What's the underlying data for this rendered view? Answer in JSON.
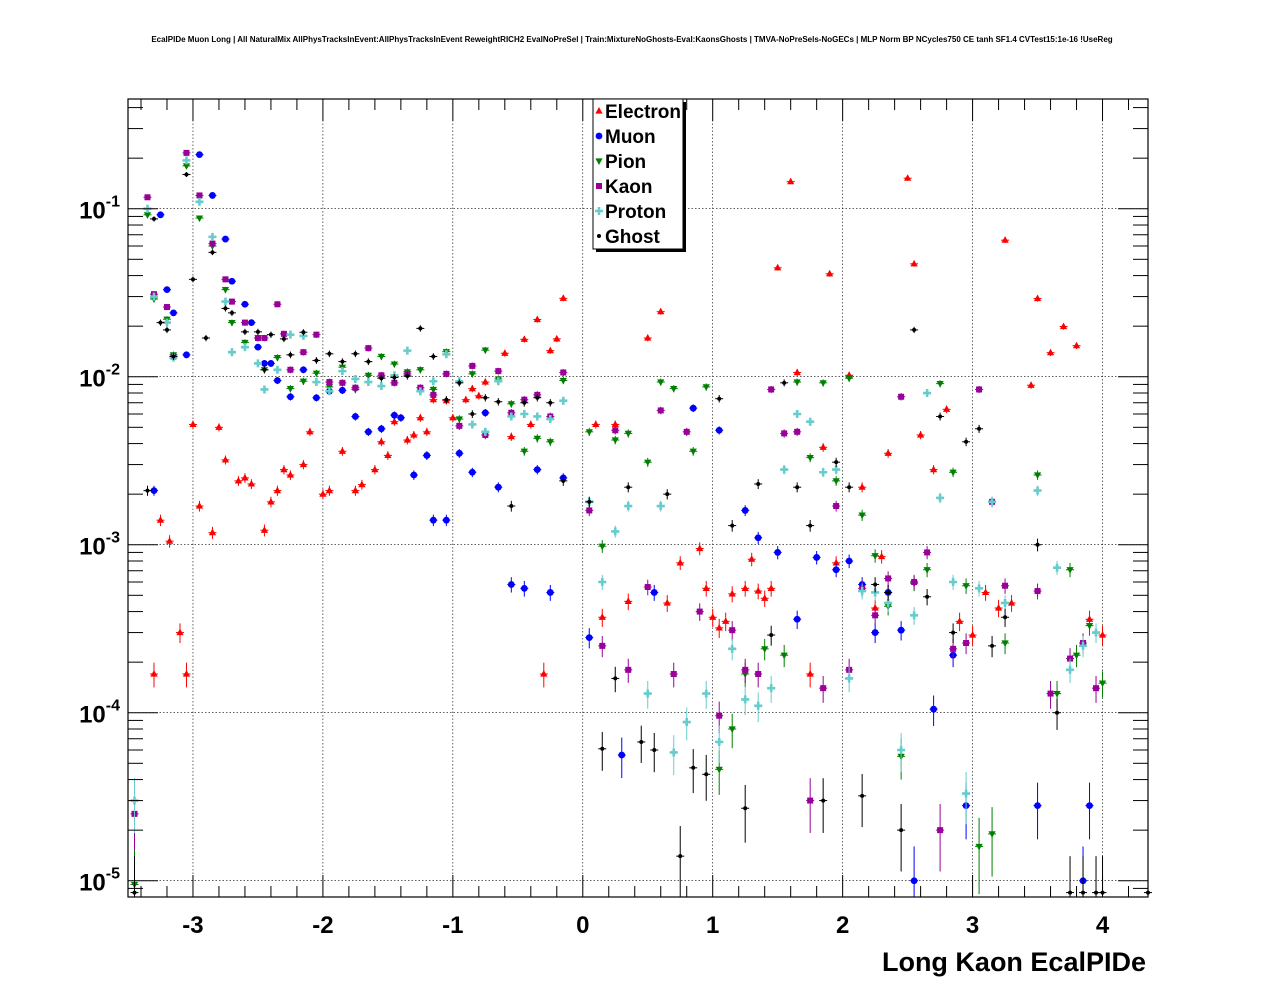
{
  "chart_data": {
    "type": "scatter",
    "title": "EcalPIDe Muon Long | All NaturalMix AllPhysTracksInEvent:AllPhysTracksInEvent ReweightRICH2 EvalNoPreSel | Train:MixtureNoGhosts-Eval:KaonsGhosts | TMVA-NoPreSels-NoGECs | MLP Norm BP NCycles750 CE tanh SF1.4 CVTest15:1e-16 !UseReg",
    "xlabel": "Long Kaon EcalPIDe",
    "ylabel": "",
    "xlim": [
      -3.5,
      4.35
    ],
    "ylim": [
      8e-06,
      0.45
    ],
    "yscale": "log",
    "grid": true,
    "legend_position": "top-center",
    "x_ticks": [
      -3,
      -2,
      -1,
      0,
      1,
      2,
      3,
      4
    ],
    "x_tick_labels": [
      "-3",
      "-2",
      "-1",
      "0",
      "1",
      "2",
      "3",
      "4"
    ],
    "y_ticks": [
      1e-05,
      0.0001,
      0.001,
      0.01,
      0.1
    ],
    "y_tick_labels": [
      {
        "base": "10",
        "exp": "-5"
      },
      {
        "base": "10",
        "exp": "-4"
      },
      {
        "base": "10",
        "exp": "-3"
      },
      {
        "base": "10",
        "exp": "-2"
      },
      {
        "base": "10",
        "exp": "-1"
      }
    ],
    "series": [
      {
        "name": "Electron",
        "color": "#ff0000",
        "marker": "triangle-up",
        "x": [
          -3.3,
          -3.25,
          -3.18,
          -3.1,
          -3.05,
          -3,
          -2.95,
          -2.85,
          -2.8,
          -2.75,
          -2.65,
          -2.6,
          -2.55,
          -2.45,
          -2.4,
          -2.35,
          -2.3,
          -2.25,
          -2.15,
          -2.1,
          -2,
          -1.95,
          -1.85,
          -1.75,
          -1.7,
          -1.6,
          -1.55,
          -1.5,
          -1.45,
          -1.35,
          -1.3,
          -1.25,
          -1.2,
          -1.15,
          -1.05,
          -1,
          -0.9,
          -0.85,
          -0.8,
          -0.75,
          -0.6,
          -0.55,
          -0.45,
          -0.4,
          -0.35,
          -0.3,
          -0.25,
          -0.2,
          -0.15,
          0.1,
          0.15,
          0.25,
          0.35,
          0.5,
          0.6,
          0.65,
          0.75,
          0.9,
          0.95,
          1,
          1.05,
          1.1,
          1.15,
          1.25,
          1.3,
          1.35,
          1.4,
          1.45,
          1.5,
          1.6,
          1.65,
          1.75,
          1.85,
          1.9,
          1.95,
          2.05,
          2.15,
          2.25,
          2.3,
          2.35,
          2.5,
          2.55,
          2.6,
          2.7,
          2.8,
          2.9,
          3,
          3.1,
          3.2,
          3.25,
          3.3,
          3.45,
          3.5,
          3.6,
          3.7,
          3.8,
          3.9,
          4
        ],
        "y": [
          0.00017,
          0.0014,
          0.00105,
          0.0003,
          0.00017,
          0.0052,
          0.0017,
          0.00118,
          0.005,
          0.0032,
          0.0024,
          0.0025,
          0.0023,
          0.00122,
          0.0018,
          0.0021,
          0.0028,
          0.0026,
          0.003,
          0.0047,
          0.002,
          0.0021,
          0.0036,
          0.0021,
          0.00228,
          0.0028,
          0.0041,
          0.0034,
          0.0054,
          0.0042,
          0.0045,
          0.0057,
          0.0047,
          0.0073,
          0.0072,
          0.0057,
          0.0073,
          0.0085,
          0.0077,
          0.0093,
          0.0138,
          0.0044,
          0.0167,
          0.0052,
          0.0219,
          0.00017,
          0.0143,
          0.0168,
          0.0293,
          0.0052,
          0.00037,
          0.0052,
          0.00046,
          0.017,
          0.0244,
          0.00045,
          0.00078,
          0.00095,
          0.00055,
          0.00037,
          0.00032,
          0.00035,
          0.00051,
          0.00055,
          0.00082,
          0.00053,
          0.00048,
          0.00055,
          0.0445,
          0.145,
          0.0106,
          0.00017,
          0.0038,
          0.041,
          0.00078,
          0.0102,
          0.0022,
          0.00042,
          0.00085,
          0.0035,
          0.152,
          0.047,
          0.0045,
          0.0028,
          0.0064,
          0.00035,
          0.00029,
          0.00052,
          0.00042,
          0.065,
          0.00045,
          0.0089,
          0.0292,
          0.0139,
          0.0199,
          0.0153,
          0.00036,
          0.00029
        ]
      },
      {
        "name": "Muon",
        "color": "#0000ff",
        "marker": "circle",
        "x": [
          -3.3,
          -3.25,
          -3.2,
          -3.15,
          -3.05,
          -2.95,
          -2.85,
          -2.75,
          -2.7,
          -2.6,
          -2.55,
          -2.5,
          -2.45,
          -2.4,
          -2.35,
          -2.25,
          -2.15,
          -2.05,
          -1.95,
          -1.85,
          -1.75,
          -1.65,
          -1.55,
          -1.45,
          -1.4,
          -1.3,
          -1.2,
          -1.15,
          -1.05,
          -0.95,
          -0.85,
          -0.75,
          -0.65,
          -0.55,
          -0.45,
          -0.35,
          -0.25,
          -0.15,
          0.05,
          0.3,
          0.55,
          0.85,
          1.05,
          1.25,
          1.35,
          1.5,
          1.65,
          1.8,
          1.95,
          2.05,
          2.15,
          2.25,
          2.35,
          2.45,
          2.55,
          2.7,
          2.85,
          2.95,
          3.5,
          3.85,
          3.9
        ],
        "y": [
          0.0021,
          0.092,
          0.033,
          0.024,
          0.0135,
          0.21,
          0.12,
          0.066,
          0.037,
          0.027,
          0.021,
          0.015,
          0.012,
          0.012,
          0.0095,
          0.0076,
          0.011,
          0.0075,
          0.0082,
          0.0083,
          0.0058,
          0.0047,
          0.0049,
          0.0059,
          0.0057,
          0.0026,
          0.0034,
          0.0014,
          0.0014,
          0.0035,
          0.0027,
          0.0061,
          0.0022,
          0.00058,
          0.00055,
          0.0028,
          0.00052,
          0.0025,
          0.00028,
          5.6e-05,
          0.00052,
          0.0065,
          0.0048,
          0.0016,
          0.0011,
          0.0009,
          0.00036,
          0.00084,
          0.00071,
          0.0008,
          0.00058,
          0.0003,
          0.00052,
          0.00031,
          1e-05,
          0.000105,
          0.00022,
          2.8e-05,
          2.8e-05,
          1e-05,
          2.8e-05
        ]
      },
      {
        "name": "Pion",
        "color": "#008000",
        "marker": "triangle-down",
        "x": [
          -3.45,
          -3.35,
          -3.3,
          -3.2,
          -3.15,
          -3.05,
          -2.95,
          -2.85,
          -2.75,
          -2.7,
          -2.6,
          -2.5,
          -2.45,
          -2.35,
          -2.25,
          -2.15,
          -2.05,
          -1.95,
          -1.85,
          -1.75,
          -1.65,
          -1.55,
          -1.45,
          -1.35,
          -1.25,
          -1.15,
          -1.05,
          -0.95,
          -0.85,
          -0.75,
          -0.65,
          -0.55,
          -0.45,
          -0.35,
          -0.25,
          -0.15,
          0.05,
          0.15,
          0.25,
          0.35,
          0.5,
          0.6,
          0.7,
          0.85,
          0.95,
          1.05,
          1.15,
          1.25,
          1.4,
          1.55,
          1.65,
          1.75,
          1.85,
          1.95,
          2.05,
          2.15,
          2.25,
          2.35,
          2.45,
          2.55,
          2.65,
          2.75,
          2.85,
          2.95,
          3.05,
          3.15,
          3.25,
          3.5,
          3.65,
          3.75,
          3.8,
          3.9,
          4
        ],
        "y": [
          9.5e-06,
          0.092,
          0.029,
          0.022,
          0.0135,
          0.18,
          0.088,
          0.06,
          0.033,
          0.021,
          0.016,
          0.017,
          0.011,
          0.013,
          0.0085,
          0.0094,
          0.0105,
          0.0087,
          0.0114,
          0.0084,
          0.0102,
          0.0132,
          0.0119,
          0.0107,
          0.011,
          0.0084,
          0.0141,
          0.0056,
          0.0104,
          0.0144,
          0.0097,
          0.0069,
          0.0036,
          0.0043,
          0.0041,
          0.0095,
          0.0047,
          0.00098,
          0.0042,
          0.0046,
          0.0031,
          0.0093,
          0.0085,
          0.0036,
          0.0087,
          4.6e-05,
          8e-05,
          0.00017,
          0.00024,
          0.00022,
          0.0093,
          0.0033,
          0.0092,
          0.0024,
          0.0098,
          0.0015,
          0.00086,
          0.00043,
          5.5e-05,
          0.00059,
          0.00071,
          0.0091,
          0.0027,
          0.00057,
          1.6e-05,
          1.9e-05,
          0.00026,
          0.0026,
          0.00013,
          0.00071,
          0.00022,
          0.00033,
          0.00015
        ]
      },
      {
        "name": "Kaon",
        "color": "#990099",
        "marker": "square",
        "x": [
          -3.45,
          -3.35,
          -3.3,
          -3.2,
          -3.15,
          -3.05,
          -2.95,
          -2.85,
          -2.75,
          -2.7,
          -2.6,
          -2.5,
          -2.45,
          -2.35,
          -2.3,
          -2.25,
          -2.15,
          -2.05,
          -1.95,
          -1.85,
          -1.75,
          -1.65,
          -1.55,
          -1.45,
          -1.35,
          -1.25,
          -1.15,
          -1.05,
          -0.95,
          -0.85,
          -0.75,
          -0.65,
          -0.55,
          -0.45,
          -0.35,
          -0.25,
          -0.15,
          0.05,
          0.15,
          0.25,
          0.35,
          0.5,
          0.6,
          0.7,
          0.8,
          0.9,
          1.05,
          1.15,
          1.25,
          1.35,
          1.45,
          1.55,
          1.65,
          1.75,
          1.85,
          1.95,
          2.05,
          2.15,
          2.25,
          2.35,
          2.45,
          2.55,
          2.65,
          2.75,
          2.85,
          2.95,
          3.05,
          3.15,
          3.25,
          3.5,
          3.6,
          3.75,
          3.85,
          3.95
        ],
        "y": [
          2.5e-05,
          0.117,
          0.031,
          0.026,
          0.0132,
          0.215,
          0.12,
          0.062,
          0.038,
          0.028,
          0.021,
          0.017,
          0.017,
          0.027,
          0.018,
          0.011,
          0.014,
          0.0178,
          0.0093,
          0.0092,
          0.0086,
          0.0148,
          0.0102,
          0.0092,
          0.0104,
          0.0086,
          0.0078,
          0.0104,
          0.0051,
          0.0116,
          0.0045,
          0.0108,
          0.0061,
          0.0073,
          0.0078,
          0.0058,
          0.0106,
          0.0016,
          0.00025,
          0.0048,
          0.00018,
          0.00056,
          0.0063,
          0.00017,
          0.0047,
          0.0004,
          9.6e-05,
          0.00031,
          0.00018,
          0.00017,
          0.0084,
          0.0046,
          0.0047,
          3e-05,
          0.00014,
          0.0017,
          0.00018,
          0.00055,
          0.00038,
          0.00063,
          0.0076,
          0.0006,
          0.0009,
          2e-05,
          0.00024,
          0.00026,
          0.0084,
          0.0018,
          0.00057,
          0.00053,
          0.00013,
          0.00021,
          0.00026,
          0.00014
        ]
      },
      {
        "name": "Proton",
        "color": "#66cccc",
        "marker": "cross",
        "x": [
          -3.45,
          -3.35,
          -3.3,
          -3.2,
          -3.15,
          -3.05,
          -2.95,
          -2.85,
          -2.75,
          -2.7,
          -2.6,
          -2.5,
          -2.45,
          -2.35,
          -2.25,
          -2.15,
          -2.05,
          -1.95,
          -1.85,
          -1.75,
          -1.65,
          -1.55,
          -1.45,
          -1.35,
          -1.25,
          -1.15,
          -1.05,
          -0.95,
          -0.85,
          -0.75,
          -0.65,
          -0.55,
          -0.45,
          -0.35,
          -0.25,
          -0.15,
          0.05,
          0.15,
          0.25,
          0.35,
          0.5,
          0.6,
          0.7,
          0.8,
          0.95,
          1.05,
          1.15,
          1.25,
          1.35,
          1.45,
          1.55,
          1.65,
          1.75,
          1.85,
          1.95,
          2.05,
          2.15,
          2.25,
          2.35,
          2.45,
          2.55,
          2.65,
          2.75,
          2.85,
          2.95,
          3.05,
          3.15,
          3.25,
          3.5,
          3.65,
          3.75,
          3.85,
          3.95
        ],
        "y": [
          3e-05,
          0.1,
          0.03,
          0.021,
          0.013,
          0.194,
          0.11,
          0.068,
          0.028,
          0.014,
          0.015,
          0.012,
          0.0084,
          0.011,
          0.0178,
          0.0175,
          0.0093,
          0.0082,
          0.0108,
          0.0097,
          0.0093,
          0.0088,
          0.0102,
          0.0143,
          0.0082,
          0.0094,
          0.0136,
          0.0094,
          0.0052,
          0.0047,
          0.0094,
          0.0058,
          0.006,
          0.0058,
          0.0056,
          0.0072,
          0.0018,
          0.0006,
          0.0012,
          0.0017,
          0.00013,
          0.0017,
          5.8e-05,
          8.8e-05,
          0.00013,
          6.7e-05,
          0.00024,
          0.00012,
          0.00011,
          0.00014,
          0.0028,
          0.006,
          0.0054,
          0.0027,
          0.0028,
          0.00016,
          0.00053,
          0.00052,
          0.00045,
          6e-05,
          0.00038,
          0.008,
          0.0019,
          0.0006,
          3.3e-05,
          0.00055,
          0.0018,
          0.00045,
          0.0021,
          0.00073,
          0.00018,
          0.00025,
          0.0003
        ]
      },
      {
        "name": "Ghost",
        "color": "#000000",
        "marker": "dot",
        "x": [
          -3.45,
          -3.35,
          -3.3,
          -3.25,
          -3.2,
          -3.15,
          -3.05,
          -3,
          -2.9,
          -2.85,
          -2.75,
          -2.7,
          -2.6,
          -2.5,
          -2.45,
          -2.4,
          -2.3,
          -2.25,
          -2.15,
          -2.05,
          -1.95,
          -1.85,
          -1.75,
          -1.65,
          -1.55,
          -1.45,
          -1.35,
          -1.25,
          -1.15,
          -1.05,
          -0.95,
          -0.85,
          -0.75,
          -0.65,
          -0.55,
          -0.45,
          -0.35,
          -0.25,
          -0.15,
          0.05,
          0.15,
          0.25,
          0.35,
          0.45,
          0.55,
          0.65,
          0.75,
          0.85,
          0.95,
          1.05,
          1.15,
          1.25,
          1.35,
          1.45,
          1.55,
          1.65,
          1.75,
          1.85,
          1.95,
          2.05,
          2.15,
          2.25,
          2.35,
          2.45,
          2.55,
          2.65,
          2.75,
          2.85,
          2.95,
          3.05,
          3.15,
          3.25,
          3.5,
          3.65,
          3.75,
          3.85,
          3.95,
          4,
          4.35
        ],
        "y": [
          8.5e-06,
          0.0021,
          0.087,
          0.021,
          0.019,
          0.0132,
          0.16,
          0.038,
          0.017,
          0.055,
          0.0255,
          0.024,
          0.0185,
          0.0185,
          0.011,
          0.0178,
          0.0168,
          0.0135,
          0.0184,
          0.0125,
          0.0137,
          0.0123,
          0.0137,
          0.0123,
          0.0098,
          0.0099,
          0.0101,
          0.0194,
          0.0132,
          0.0073,
          0.0092,
          0.006,
          0.0075,
          0.0071,
          0.0017,
          0.007,
          0.0075,
          0.007,
          0.0024,
          0.0018,
          6.1e-05,
          0.00016,
          0.0022,
          6.7e-05,
          6e-05,
          0.002,
          1.4e-05,
          4.7e-05,
          4.3e-05,
          0.0074,
          0.0013,
          2.7e-05,
          0.0023,
          0.00029,
          0.0092,
          0.0022,
          0.0013,
          3e-05,
          0.0031,
          0.0022,
          3.2e-05,
          0.00058,
          0.00052,
          2e-05,
          0.019,
          0.00049,
          0.0058,
          0.0003,
          0.0041,
          0.0049,
          0.00025,
          0.00037,
          0.001,
          0.0001,
          8.5e-06,
          8.5e-06,
          8.5e-06,
          8.5e-06,
          8.5e-06
        ]
      }
    ]
  }
}
